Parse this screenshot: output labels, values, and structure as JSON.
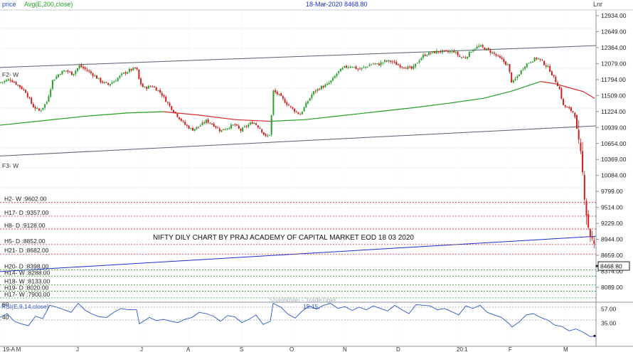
{
  "header": {
    "series_label": "price",
    "indicator_label": "Avg(E,200,close)",
    "date_price": "18-Mar-2020 8468.80",
    "scale_label": "Lnr"
  },
  "annotation": "NIFTY DILY CHART BY PRAJ ACADEMY OF CAPITAL MARKET EOD 18 03 2020",
  "watermark": "Sharekhan - TradeTiger",
  "rsi_label": "RSI(E,9,14,close)",
  "rsi_value": "15.15,",
  "colors": {
    "up": "#2e9e2e",
    "down": "#cc1f1f",
    "ema_above": "#22a022",
    "ema_below": "#d42a2a",
    "channel": "#556070",
    "trendline": "#1a2ecc",
    "resistance": "#cc2b2b",
    "support": "#2a9a2a",
    "rsi": "#2a56c6"
  },
  "chart_data": {
    "type": "candlestick",
    "title": "18-Mar-2020 8468.80",
    "last_price": 8468.8,
    "price_axis": {
      "ticks": [
        "12934.00",
        "12649.00",
        "12364.00",
        "12079.00",
        "11794.00",
        "11509.00",
        "11224.00",
        "10939.00",
        "10654.00",
        "10369.00",
        "10084.00",
        "9799.00",
        "9514.00",
        "9229.00",
        "8944.00",
        "8659.00",
        "8374.00",
        "8089.00"
      ],
      "last_label": "8468.80",
      "scale": "linear"
    },
    "x_ticks": [
      "19-A M",
      "J",
      "J",
      "A",
      "S",
      "O",
      "N",
      "D",
      "20:1",
      "F",
      "M"
    ],
    "channel_labels": [
      "F2- W",
      "F3- W"
    ],
    "levels": [
      {
        "label": "H2- W :9602.00",
        "value": 9602,
        "kind": "resistance"
      },
      {
        "label": "H17- D :9357.00",
        "value": 9357,
        "kind": "resistance"
      },
      {
        "label": "H8- D :9128.00",
        "value": 9128,
        "kind": "resistance"
      },
      {
        "label": "H5- D :8852.00",
        "value": 8852,
        "kind": "resistance"
      },
      {
        "label": "H21- D :8682.00",
        "value": 8682,
        "kind": "resistance"
      },
      {
        "label": "H20- D :8398.00",
        "value": 8398,
        "kind": "support"
      },
      {
        "label": "H14- W :8288.00",
        "value": 8288,
        "kind": "support"
      },
      {
        "label": "H18- W :8133.00",
        "value": 8133,
        "kind": "support"
      },
      {
        "label": "H19- D :8020.00",
        "value": 8020,
        "kind": "support"
      },
      {
        "label": "H17- W :7900.00",
        "value": 7900,
        "kind": "support"
      }
    ],
    "close_path": [
      [
        0,
        11740
      ],
      [
        14,
        11800
      ],
      [
        25,
        11700
      ],
      [
        36,
        11580
      ],
      [
        46,
        11320
      ],
      [
        56,
        11230
      ],
      [
        66,
        11400
      ],
      [
        74,
        11780
      ],
      [
        84,
        11910
      ],
      [
        92,
        11960
      ],
      [
        102,
        11890
      ],
      [
        112,
        12040
      ],
      [
        122,
        11960
      ],
      [
        132,
        11870
      ],
      [
        142,
        11760
      ],
      [
        152,
        11700
      ],
      [
        162,
        11780
      ],
      [
        172,
        11890
      ],
      [
        182,
        11960
      ],
      [
        192,
        12000
      ],
      [
        196,
        11760
      ],
      [
        202,
        11640
      ],
      [
        214,
        11680
      ],
      [
        226,
        11560
      ],
      [
        238,
        11330
      ],
      [
        250,
        11140
      ],
      [
        260,
        10990
      ],
      [
        270,
        10900
      ],
      [
        280,
        10960
      ],
      [
        290,
        11060
      ],
      [
        300,
        10990
      ],
      [
        310,
        10880
      ],
      [
        320,
        10940
      ],
      [
        330,
        10990
      ],
      [
        338,
        10880
      ],
      [
        346,
        10960
      ],
      [
        356,
        11040
      ],
      [
        366,
        10920
      ],
      [
        374,
        10760
      ],
      [
        380,
        10830
      ],
      [
        384,
        11590
      ],
      [
        392,
        11520
      ],
      [
        402,
        11380
      ],
      [
        412,
        11260
      ],
      [
        422,
        11170
      ],
      [
        432,
        11390
      ],
      [
        440,
        11560
      ],
      [
        450,
        11650
      ],
      [
        460,
        11700
      ],
      [
        468,
        11800
      ],
      [
        474,
        11910
      ],
      [
        484,
        12010
      ],
      [
        494,
        12040
      ],
      [
        504,
        11970
      ],
      [
        514,
        12020
      ],
      [
        524,
        12080
      ],
      [
        532,
        12060
      ],
      [
        540,
        12120
      ],
      [
        550,
        12120
      ],
      [
        560,
        12050
      ],
      [
        570,
        12020
      ],
      [
        580,
        11980
      ],
      [
        588,
        12130
      ],
      [
        596,
        12230
      ],
      [
        606,
        12270
      ],
      [
        618,
        12300
      ],
      [
        628,
        12280
      ],
      [
        638,
        12300
      ],
      [
        646,
        12200
      ],
      [
        654,
        12180
      ],
      [
        664,
        12330
      ],
      [
        674,
        12390
      ],
      [
        684,
        12330
      ],
      [
        694,
        12260
      ],
      [
        704,
        12160
      ],
      [
        714,
        12050
      ],
      [
        720,
        11720
      ],
      [
        728,
        11860
      ],
      [
        738,
        12050
      ],
      [
        748,
        12140
      ],
      [
        756,
        12180
      ],
      [
        764,
        12090
      ],
      [
        772,
        11990
      ],
      [
        780,
        11790
      ],
      [
        786,
        11660
      ],
      [
        792,
        11330
      ],
      [
        800,
        11270
      ],
      [
        808,
        11190
      ],
      [
        812,
        10700
      ],
      [
        816,
        10450
      ],
      [
        820,
        10000
      ],
      [
        824,
        9480
      ],
      [
        828,
        9100
      ],
      [
        832,
        8950
      ],
      [
        836,
        8750
      ],
      [
        840,
        8469
      ]
    ],
    "ema200_path": [
      [
        0,
        10980
      ],
      [
        60,
        11060
      ],
      [
        120,
        11140
      ],
      [
        180,
        11200
      ],
      [
        230,
        11220
      ],
      [
        280,
        11160
      ],
      [
        330,
        11080
      ],
      [
        380,
        11050
      ],
      [
        430,
        11080
      ],
      [
        480,
        11150
      ],
      [
        530,
        11220
      ],
      [
        580,
        11290
      ],
      [
        630,
        11370
      ],
      [
        680,
        11460
      ],
      [
        720,
        11590
      ],
      [
        760,
        11760
      ],
      [
        780,
        11720
      ],
      [
        800,
        11650
      ],
      [
        820,
        11580
      ],
      [
        836,
        11460
      ]
    ],
    "ema200_cross_index": 15,
    "upper_channel": [
      [
        0,
        12010
      ],
      [
        840,
        12400
      ]
    ],
    "lower_channel": [
      [
        0,
        10430
      ],
      [
        840,
        10970
      ]
    ],
    "trendline": [
      [
        0,
        8370
      ],
      [
        840,
        9000
      ]
    ],
    "rsi": {
      "levels": [
        60,
        40
      ],
      "ticks": [
        "57.00",
        "35.00"
      ],
      "last": 15.15,
      "path": [
        [
          0,
          44
        ],
        [
          10,
          50
        ],
        [
          20,
          38
        ],
        [
          30,
          34
        ],
        [
          40,
          31
        ],
        [
          50,
          46
        ],
        [
          60,
          42
        ],
        [
          70,
          63
        ],
        [
          80,
          60
        ],
        [
          90,
          56
        ],
        [
          100,
          52
        ],
        [
          110,
          66
        ],
        [
          120,
          55
        ],
        [
          130,
          49
        ],
        [
          140,
          45
        ],
        [
          150,
          44
        ],
        [
          160,
          52
        ],
        [
          170,
          58
        ],
        [
          180,
          56
        ],
        [
          192,
          56
        ],
        [
          196,
          34
        ],
        [
          210,
          44
        ],
        [
          220,
          39
        ],
        [
          230,
          41
        ],
        [
          240,
          38
        ],
        [
          250,
          36
        ],
        [
          260,
          41
        ],
        [
          270,
          44
        ],
        [
          280,
          52
        ],
        [
          290,
          50
        ],
        [
          300,
          46
        ],
        [
          310,
          38
        ],
        [
          320,
          47
        ],
        [
          330,
          45
        ],
        [
          340,
          36
        ],
        [
          350,
          41
        ],
        [
          360,
          48
        ],
        [
          370,
          33
        ],
        [
          380,
          38
        ],
        [
          384,
          66
        ],
        [
          395,
          60
        ],
        [
          405,
          49
        ],
        [
          415,
          43
        ],
        [
          425,
          54
        ],
        [
          435,
          62
        ],
        [
          445,
          57
        ],
        [
          455,
          63
        ],
        [
          465,
          66
        ],
        [
          475,
          58
        ],
        [
          485,
          61
        ],
        [
          495,
          55
        ],
        [
          505,
          60
        ],
        [
          515,
          56
        ],
        [
          525,
          62
        ],
        [
          535,
          58
        ],
        [
          545,
          54
        ],
        [
          555,
          63
        ],
        [
          565,
          56
        ],
        [
          575,
          50
        ],
        [
          585,
          64
        ],
        [
          595,
          63
        ],
        [
          605,
          62
        ],
        [
          615,
          56
        ],
        [
          625,
          58
        ],
        [
          635,
          53
        ],
        [
          645,
          48
        ],
        [
          655,
          62
        ],
        [
          665,
          58
        ],
        [
          675,
          63
        ],
        [
          685,
          52
        ],
        [
          695,
          48
        ],
        [
          705,
          44
        ],
        [
          715,
          35
        ],
        [
          720,
          29
        ],
        [
          730,
          37
        ],
        [
          740,
          48
        ],
        [
          750,
          50
        ],
        [
          760,
          44
        ],
        [
          770,
          40
        ],
        [
          780,
          32
        ],
        [
          790,
          30
        ],
        [
          800,
          23
        ],
        [
          810,
          26
        ],
        [
          820,
          21
        ],
        [
          830,
          14
        ],
        [
          836,
          15
        ]
      ]
    }
  }
}
